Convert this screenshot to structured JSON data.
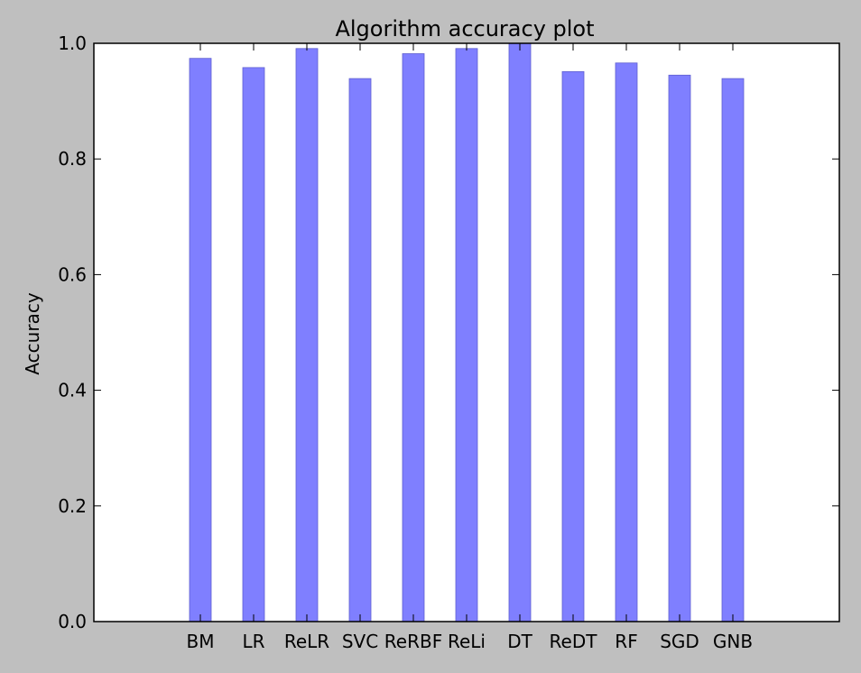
{
  "chart_data": {
    "type": "bar",
    "title": "Algorithm accuracy plot",
    "xlabel": "",
    "ylabel": "Accuracy",
    "categories": [
      "BM",
      "LR",
      "ReLR",
      "SVC",
      "ReRBF",
      "ReLi",
      "DT",
      "ReDT",
      "RF",
      "SGD",
      "GNB"
    ],
    "values": [
      0.974,
      0.958,
      0.991,
      0.939,
      0.982,
      0.991,
      1.0,
      0.951,
      0.966,
      0.945,
      0.939
    ],
    "ylim": [
      0.0,
      1.0
    ],
    "yticks": [
      "0.0",
      "0.2",
      "0.4",
      "0.6",
      "0.8",
      "1.0"
    ],
    "grid": false,
    "legend": "none",
    "colors": {
      "bar": "#7f7fff",
      "bar_edge": "#5f5fd0",
      "frame_background": "#bfbfbf",
      "plot_background": "#ffffff",
      "axis": "#000000"
    }
  }
}
